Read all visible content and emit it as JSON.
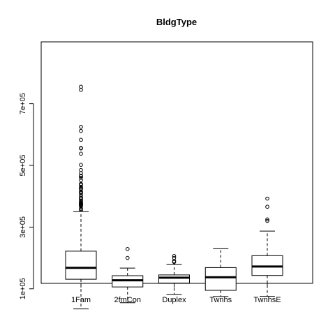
{
  "chart_data": {
    "type": "boxplot",
    "title": "BldgType",
    "xlabel": "",
    "ylabel": "",
    "ylim": [
      0,
      830000
    ],
    "yticks": [
      100000,
      300000,
      500000,
      700000
    ],
    "ytick_labels": [
      "1e+05",
      "3e+05",
      "5e+05",
      "7e+05"
    ],
    "categories": [
      "1Fam",
      "2fmCon",
      "Duplex",
      "Twnhs",
      "TwnhsE"
    ],
    "boxes": [
      {
        "name": "1Fam",
        "whisker_low": 34900,
        "q1": 131000,
        "median": 167900,
        "q3": 222000,
        "whisker_high": 350000,
        "outliers": [
          755000,
          745000,
          625000,
          611657,
          582933,
          556581,
          555000,
          538000,
          501837,
          485000,
          475000,
          466500,
          465000,
          460000,
          451950,
          440000,
          438780,
          437154,
          430000,
          426000,
          424870,
          423000,
          415298,
          412500,
          410000,
          402861,
          402000,
          395192,
          394617,
          392500,
          392000,
          386250,
          385000,
          380000,
          378500,
          377500,
          377426,
          375000,
          372500,
          372402,
          370878,
          369900,
          367294,
          360000,
          359100,
          355000
        ]
      },
      {
        "name": "2fmCon",
        "whisker_low": 55000,
        "q1": 106000,
        "median": 127500,
        "q3": 142500,
        "whisker_high": 167000,
        "outliers": [
          228950,
          200000
        ]
      },
      {
        "name": "Duplex",
        "whisker_low": 82000,
        "q1": 118500,
        "median": 135980,
        "q3": 145000,
        "whisker_high": 180000,
        "outliers": [
          206300,
          200000,
          190000,
          187000
        ]
      },
      {
        "name": "Twnhs",
        "whisker_low": 75000,
        "q1": 95000,
        "median": 137500,
        "q3": 168750,
        "whisker_high": 230000,
        "outliers": []
      },
      {
        "name": "TwnhsE",
        "whisker_low": 75500,
        "q1": 143187,
        "median": 172200,
        "q3": 207375,
        "whisker_high": 287000,
        "outliers": [
          392500,
          366000,
          325000,
          320000
        ]
      }
    ]
  }
}
